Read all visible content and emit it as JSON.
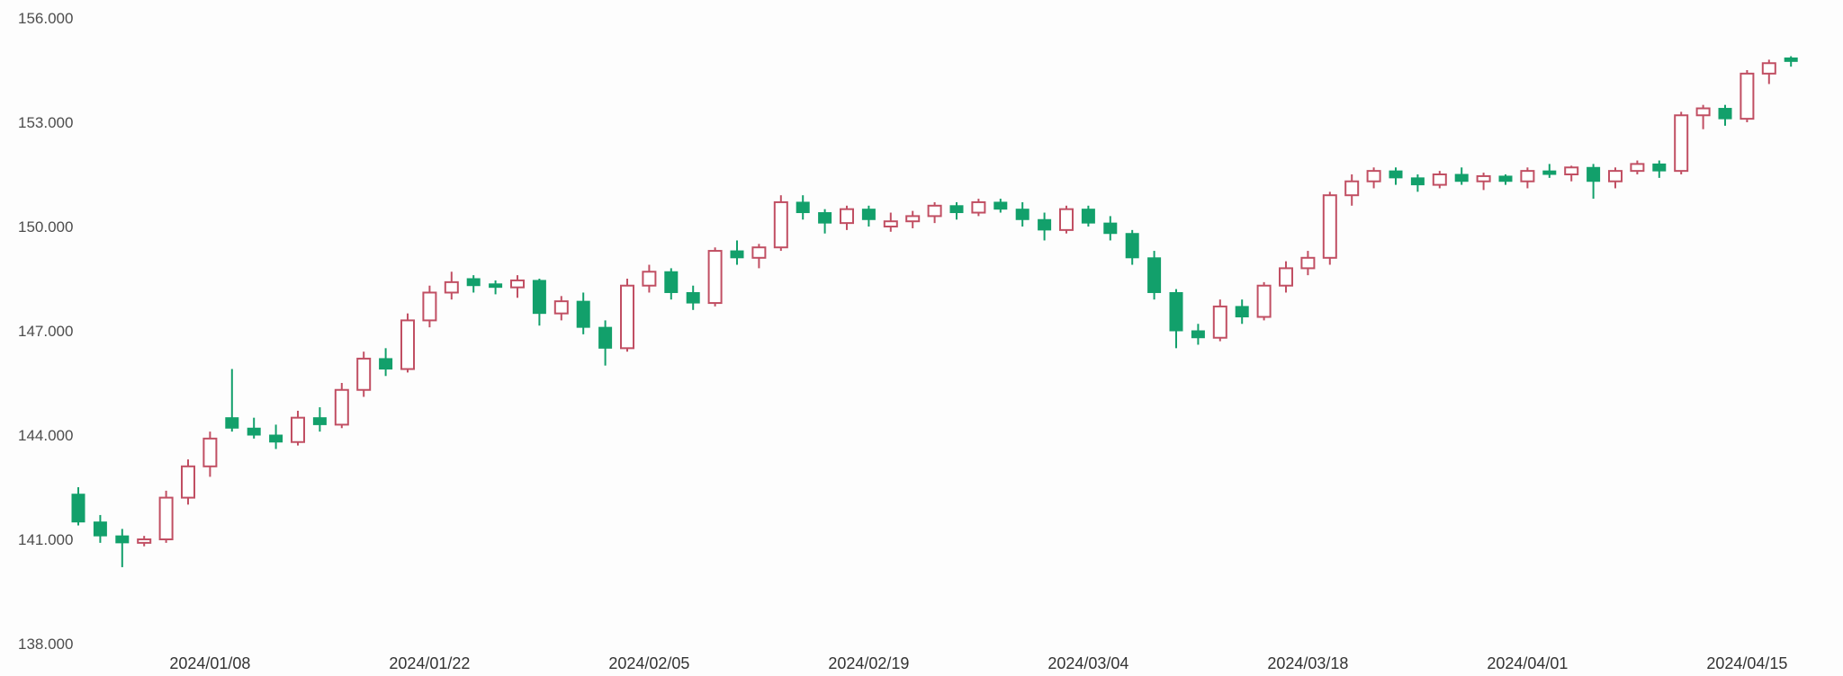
{
  "chart_data": {
    "type": "candlestick",
    "title": "",
    "xlabel": "",
    "ylabel": "",
    "background": "#fdfdfd",
    "grid": false,
    "legend": false,
    "ylim": [
      138,
      156
    ],
    "y_ticks": [
      {
        "value": 156,
        "label": "156.000"
      },
      {
        "value": 153,
        "label": "153.000"
      },
      {
        "value": 150,
        "label": "150.000"
      },
      {
        "value": 147,
        "label": "147.000"
      },
      {
        "value": 144,
        "label": "144.000"
      },
      {
        "value": 141,
        "label": "141.000"
      },
      {
        "value": 138,
        "label": "138.000"
      }
    ],
    "x_ticks": [
      {
        "index": 6,
        "label": "2024/01/08"
      },
      {
        "index": 16,
        "label": "2024/01/22"
      },
      {
        "index": 26,
        "label": "2024/02/05"
      },
      {
        "index": 36,
        "label": "2024/02/19"
      },
      {
        "index": 46,
        "label": "2024/03/04"
      },
      {
        "index": 56,
        "label": "2024/03/18"
      },
      {
        "index": 66,
        "label": "2024/04/01"
      },
      {
        "index": 76,
        "label": "2024/04/15"
      }
    ],
    "colors": {
      "up": "#c14f63",
      "up_fill": "#ffffff",
      "down": "#12a06b",
      "axis_text": "#4d4d4d"
    },
    "candle_format": [
      "date",
      "open",
      "high",
      "low",
      "close"
    ],
    "candles": [
      [
        "2023/12/28",
        142.3,
        142.5,
        141.4,
        141.5
      ],
      [
        "2023/12/29",
        141.5,
        141.7,
        140.9,
        141.1
      ],
      [
        "2024/01/02",
        141.1,
        141.3,
        140.2,
        140.9
      ],
      [
        "2024/01/03",
        140.9,
        141.1,
        140.8,
        141.0
      ],
      [
        "2024/01/04",
        141.0,
        142.4,
        140.9,
        142.2
      ],
      [
        "2024/01/05",
        142.2,
        143.3,
        142.0,
        143.1
      ],
      [
        "2024/01/08",
        143.1,
        144.1,
        142.8,
        143.9
      ],
      [
        "2024/01/09",
        144.5,
        145.9,
        144.1,
        144.2
      ],
      [
        "2024/01/10",
        144.2,
        144.5,
        143.9,
        144.0
      ],
      [
        "2024/01/11",
        144.0,
        144.3,
        143.6,
        143.8
      ],
      [
        "2024/01/12",
        143.8,
        144.7,
        143.7,
        144.5
      ],
      [
        "2024/01/15",
        144.5,
        144.8,
        144.1,
        144.3
      ],
      [
        "2024/01/16",
        144.3,
        145.5,
        144.2,
        145.3
      ],
      [
        "2024/01/17",
        145.3,
        146.4,
        145.1,
        146.2
      ],
      [
        "2024/01/18",
        146.2,
        146.5,
        145.7,
        145.9
      ],
      [
        "2024/01/19",
        145.9,
        147.5,
        145.8,
        147.3
      ],
      [
        "2024/01/22",
        147.3,
        148.3,
        147.1,
        148.1
      ],
      [
        "2024/01/23",
        148.1,
        148.7,
        147.9,
        148.4
      ],
      [
        "2024/01/24",
        148.5,
        148.6,
        148.1,
        148.3
      ],
      [
        "2024/01/25",
        148.35,
        148.45,
        148.05,
        148.25
      ],
      [
        "2024/01/26",
        148.25,
        148.6,
        147.95,
        148.45
      ],
      [
        "2024/01/29",
        148.45,
        148.5,
        147.15,
        147.5
      ],
      [
        "2024/01/30",
        147.5,
        148.0,
        147.3,
        147.85
      ],
      [
        "2024/01/31",
        147.85,
        148.1,
        146.9,
        147.1
      ],
      [
        "2024/02/01",
        147.1,
        147.3,
        146.0,
        146.5
      ],
      [
        "2024/02/02",
        146.5,
        148.5,
        146.4,
        148.3
      ],
      [
        "2024/02/05",
        148.3,
        148.9,
        148.1,
        148.7
      ],
      [
        "2024/02/06",
        148.7,
        148.8,
        147.9,
        148.1
      ],
      [
        "2024/02/07",
        148.1,
        148.3,
        147.6,
        147.8
      ],
      [
        "2024/02/08",
        147.8,
        149.4,
        147.7,
        149.3
      ],
      [
        "2024/02/09",
        149.3,
        149.6,
        148.9,
        149.1
      ],
      [
        "2024/02/12",
        149.1,
        149.5,
        148.8,
        149.4
      ],
      [
        "2024/02/13",
        149.4,
        150.9,
        149.3,
        150.7
      ],
      [
        "2024/02/14",
        150.7,
        150.9,
        150.2,
        150.4
      ],
      [
        "2024/02/15",
        150.4,
        150.5,
        149.8,
        150.1
      ],
      [
        "2024/02/16",
        150.1,
        150.6,
        149.9,
        150.5
      ],
      [
        "2024/02/19",
        150.5,
        150.6,
        150.0,
        150.2
      ],
      [
        "2024/02/20",
        150.0,
        150.4,
        149.85,
        150.15
      ],
      [
        "2024/02/21",
        150.15,
        150.45,
        149.95,
        150.3
      ],
      [
        "2024/02/22",
        150.3,
        150.7,
        150.1,
        150.6
      ],
      [
        "2024/02/23",
        150.6,
        150.7,
        150.2,
        150.4
      ],
      [
        "2024/02/26",
        150.4,
        150.8,
        150.3,
        150.7
      ],
      [
        "2024/02/27",
        150.7,
        150.8,
        150.4,
        150.5
      ],
      [
        "2024/02/28",
        150.5,
        150.7,
        150.0,
        150.2
      ],
      [
        "2024/02/29",
        150.2,
        150.4,
        149.6,
        149.9
      ],
      [
        "2024/03/01",
        149.9,
        150.6,
        149.8,
        150.5
      ],
      [
        "2024/03/04",
        150.5,
        150.6,
        150.0,
        150.1
      ],
      [
        "2024/03/05",
        150.1,
        150.3,
        149.6,
        149.8
      ],
      [
        "2024/03/06",
        149.8,
        149.9,
        148.9,
        149.1
      ],
      [
        "2024/03/07",
        149.1,
        149.3,
        147.9,
        148.1
      ],
      [
        "2024/03/08",
        148.1,
        148.2,
        146.5,
        147.0
      ],
      [
        "2024/03/11",
        147.0,
        147.2,
        146.6,
        146.8
      ],
      [
        "2024/03/12",
        146.8,
        147.9,
        146.7,
        147.7
      ],
      [
        "2024/03/13",
        147.7,
        147.9,
        147.2,
        147.4
      ],
      [
        "2024/03/14",
        147.4,
        148.4,
        147.3,
        148.3
      ],
      [
        "2024/03/15",
        148.3,
        149.0,
        148.1,
        148.8
      ],
      [
        "2024/03/18",
        148.8,
        149.3,
        148.6,
        149.1
      ],
      [
        "2024/03/19",
        149.1,
        151.0,
        148.9,
        150.9
      ],
      [
        "2024/03/20",
        150.9,
        151.5,
        150.6,
        151.3
      ],
      [
        "2024/03/21",
        151.3,
        151.7,
        151.1,
        151.6
      ],
      [
        "2024/03/22",
        151.6,
        151.7,
        151.2,
        151.4
      ],
      [
        "2024/03/25",
        151.4,
        151.5,
        151.0,
        151.2
      ],
      [
        "2024/03/26",
        151.2,
        151.6,
        151.1,
        151.5
      ],
      [
        "2024/03/27",
        151.5,
        151.7,
        151.2,
        151.3
      ],
      [
        "2024/03/28",
        151.3,
        151.55,
        151.05,
        151.45
      ],
      [
        "2024/03/29",
        151.45,
        151.5,
        151.2,
        151.3
      ],
      [
        "2024/04/01",
        151.3,
        151.7,
        151.1,
        151.6
      ],
      [
        "2024/04/02",
        151.6,
        151.8,
        151.4,
        151.5
      ],
      [
        "2024/04/03",
        151.5,
        151.75,
        151.3,
        151.7
      ],
      [
        "2024/04/04",
        151.7,
        151.8,
        150.8,
        151.3
      ],
      [
        "2024/04/05",
        151.3,
        151.7,
        151.1,
        151.6
      ],
      [
        "2024/04/08",
        151.6,
        151.9,
        151.5,
        151.8
      ],
      [
        "2024/04/09",
        151.8,
        151.9,
        151.4,
        151.6
      ],
      [
        "2024/04/10",
        151.6,
        153.3,
        151.5,
        153.2
      ],
      [
        "2024/04/11",
        153.2,
        153.5,
        152.8,
        153.4
      ],
      [
        "2024/04/12",
        153.4,
        153.5,
        152.9,
        153.1
      ],
      [
        "2024/04/15",
        153.1,
        154.5,
        153.0,
        154.4
      ],
      [
        "2024/04/16",
        154.4,
        154.8,
        154.1,
        154.7
      ],
      [
        "2024/04/17",
        154.85,
        154.9,
        154.6,
        154.75
      ]
    ]
  }
}
